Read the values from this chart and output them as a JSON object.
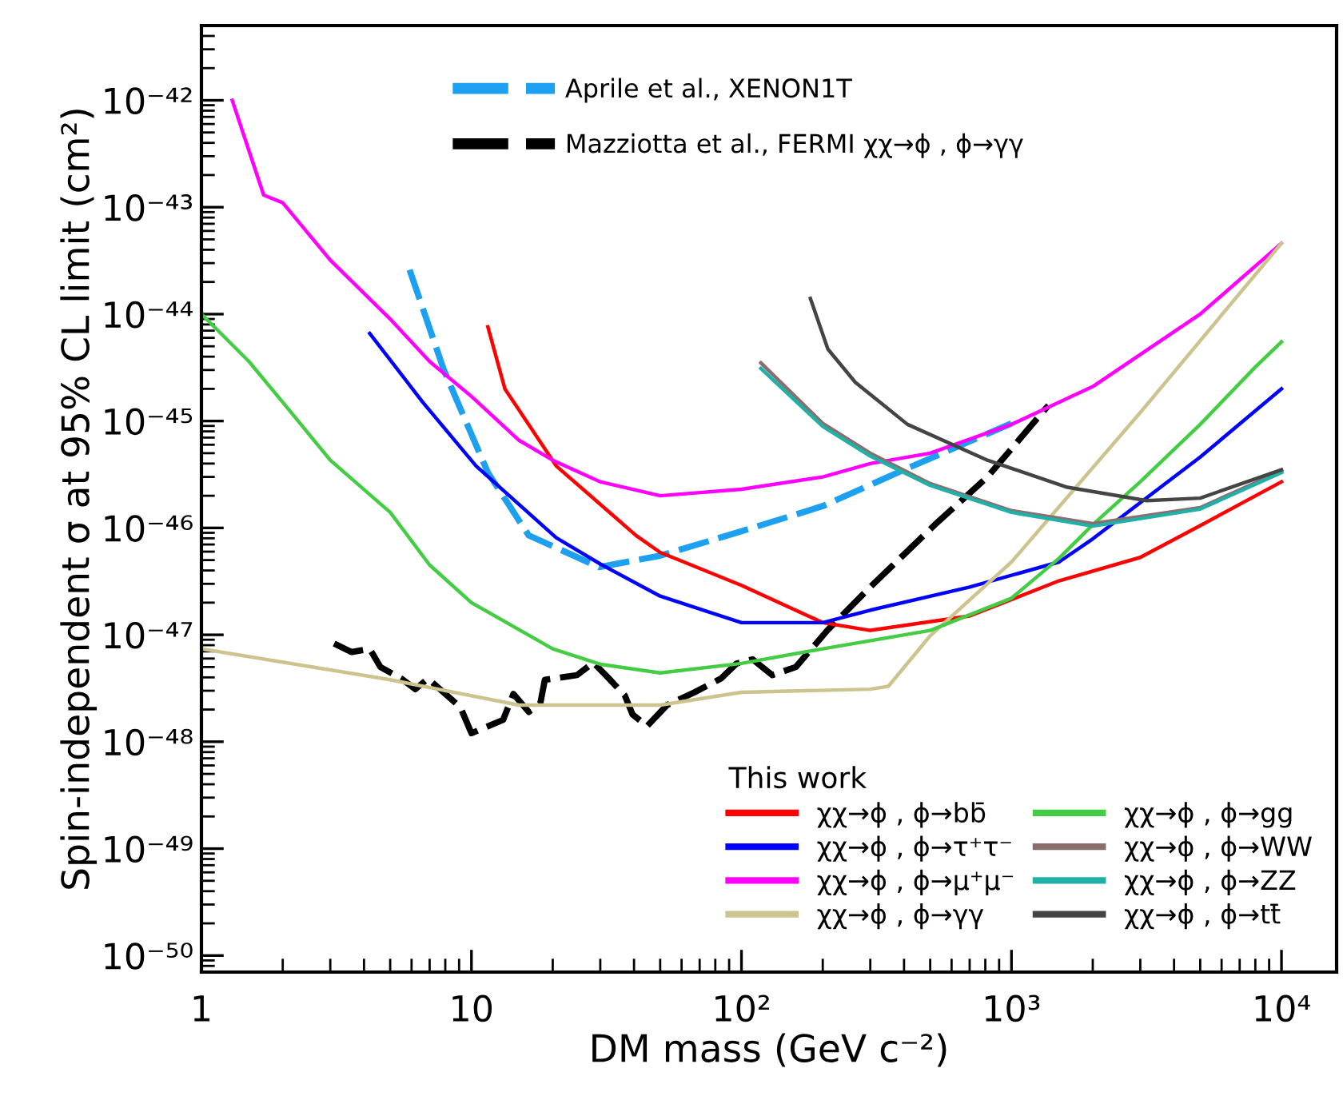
{
  "chart_data": {
    "type": "line",
    "log": "xy",
    "xlabel": "DM mass (GeV c⁻²)",
    "ylabel": "Spin-independent σ at 95% CL limit (cm²)",
    "xlim": [
      1,
      16000
    ],
    "ylim": [
      7e-51,
      5e-42
    ],
    "xticks": [
      1,
      10,
      {
        "value": 100,
        "label": "10²"
      },
      {
        "value": 1000,
        "label": "10³"
      },
      {
        "value": 10000,
        "label": "10⁴"
      }
    ],
    "yticks": [
      {
        "value": 1e-50,
        "label": "10⁻⁵⁰"
      },
      {
        "value": 1e-49,
        "label": "10⁻⁴⁹"
      },
      {
        "value": 1e-48,
        "label": "10⁻⁴⁸"
      },
      {
        "value": 1e-47,
        "label": "10⁻⁴⁷"
      },
      {
        "value": 1e-46,
        "label": "10⁻⁴⁶"
      },
      {
        "value": 1e-45,
        "label": "10⁻⁴⁵"
      },
      {
        "value": 1e-44,
        "label": "10⁻⁴⁴"
      },
      {
        "value": 1e-43,
        "label": "10⁻⁴³"
      },
      {
        "value": 1e-42,
        "label": "10⁻⁴²"
      }
    ],
    "legend": "bottom right",
    "legend_title": "This work",
    "series": [
      {
        "name": "Aprile et al., XENON1T",
        "color": "#1ea0f0",
        "line_style": "dashed",
        "x": [
          5.9,
          7.9,
          11.5,
          16.3,
          29.7,
          50,
          100,
          200,
          400,
          1000
        ],
        "values": [
          2.6e-44,
          3e-45,
          3.3e-46,
          8.5e-47,
          4.3e-47,
          5.5e-47,
          9.3e-47,
          1.6e-46,
          3.5e-46,
          9.5e-46
        ]
      },
      {
        "name": "Mazziotta et al., FERMI χχ→ϕ , ϕ→γγ",
        "color": "#000000",
        "line_style": "dashed",
        "x": [
          3.1,
          3.6,
          4.2,
          4.6,
          5.5,
          6.2,
          6.9,
          9.1,
          10,
          13.1,
          14.3,
          16.3,
          18,
          18.7,
          24.6,
          28.3,
          32.3,
          37,
          39.5,
          44.7,
          53,
          67,
          84,
          96,
          110,
          130,
          159,
          208,
          300,
          520,
          815,
          1370
        ],
        "values": [
          8.3e-48,
          6.9e-48,
          7.4e-48,
          5e-48,
          3.9e-48,
          3.1e-48,
          3.9e-48,
          2.1e-48,
          1.2e-48,
          1.6e-48,
          2.8e-48,
          1.9e-48,
          2.3e-48,
          3.8e-48,
          4.2e-48,
          5.5e-48,
          3.9e-48,
          2.7e-48,
          1.8e-48,
          1.4e-48,
          2.2e-48,
          2.9e-48,
          3.9e-48,
          5.4e-48,
          5.9e-48,
          4.2e-48,
          5e-48,
          1.1e-47,
          2.8e-47,
          1.07e-46,
          3e-46,
          1.4e-45
        ]
      },
      {
        "name": "χχ→ϕ , ϕ→bb̄",
        "color": "#ff0000",
        "x": [
          11.5,
          13.3,
          20.6,
          40.7,
          50,
          100,
          200,
          300,
          700,
          1500,
          3000,
          5000,
          10000
        ],
        "values": [
          7.6e-45,
          2e-45,
          3.8e-46,
          8.5e-47,
          5.9e-47,
          2.9e-47,
          1.3e-47,
          1.1e-47,
          1.5e-47,
          3.2e-47,
          5.3e-47,
          1.05e-46,
          2.7e-46
        ]
      },
      {
        "name": "χχ→ϕ , ϕ→τ⁺τ⁻",
        "color": "#0000ff",
        "x": [
          4.2,
          6.6,
          10.4,
          20.6,
          30,
          50,
          100,
          200,
          300,
          700,
          1500,
          2000,
          5000,
          10000
        ],
        "values": [
          6.6e-45,
          1.5e-45,
          3.8e-46,
          8.1e-47,
          4.6e-47,
          2.3e-47,
          1.3e-47,
          1.3e-47,
          1.7e-47,
          2.8e-47,
          4.8e-47,
          7.9e-47,
          4.6e-46,
          2e-45
        ]
      },
      {
        "name": "χχ→ϕ , ϕ→μ⁺μ⁻",
        "color": "#ff00ff",
        "x": [
          1.3,
          1.7,
          2,
          3,
          5,
          7,
          10,
          15,
          20,
          30,
          50,
          100,
          200,
          300,
          500,
          1000,
          2000,
          5000,
          10000
        ],
        "values": [
          1e-42,
          1.3e-43,
          1.1e-43,
          3.2e-44,
          9e-45,
          3.6e-45,
          1.7e-45,
          6.6e-46,
          4.3e-46,
          2.7e-46,
          2e-46,
          2.3e-46,
          3e-46,
          4e-46,
          5e-46,
          9.3e-46,
          2.1e-45,
          1e-44,
          4.6e-44
        ]
      },
      {
        "name": "χχ→ϕ , ϕ→γγ",
        "color": "#cdc38e",
        "x": [
          1,
          5,
          15,
          50,
          100,
          300,
          350,
          500,
          1000,
          3000,
          10000
        ],
        "values": [
          7.4e-48,
          3.8e-48,
          2.2e-48,
          2.2e-48,
          2.9e-48,
          3.1e-48,
          3.3e-48,
          9.8e-48,
          4.8e-47,
          1.2e-45,
          4.6e-44
        ]
      },
      {
        "name": "χχ→ϕ , ϕ→gg",
        "color": "#44cc44",
        "x": [
          1,
          1.5,
          2,
          3,
          5,
          7,
          10,
          20,
          30,
          50,
          100,
          200,
          500,
          1000,
          1500,
          2000,
          3000,
          5000,
          8000,
          10000
        ],
        "values": [
          1e-44,
          3.6e-45,
          1.5e-45,
          4.3e-46,
          1.4e-46,
          4.5e-47,
          2e-47,
          7.4e-48,
          5.3e-48,
          4.4e-48,
          5.4e-48,
          7.4e-48,
          1.1e-47,
          2.2e-47,
          5.2e-47,
          1.07e-46,
          2.7e-46,
          9.3e-46,
          3.2e-45,
          5.5e-45
        ]
      },
      {
        "name": "χχ→ϕ , ϕ→WW",
        "color": "#8a6e6e",
        "x": [
          118,
          200,
          300,
          500,
          1000,
          2000,
          5000,
          10000
        ],
        "values": [
          3.5e-45,
          9.5e-46,
          5e-46,
          2.6e-46,
          1.45e-46,
          1.1e-46,
          1.55e-46,
          3.4e-46
        ]
      },
      {
        "name": "χχ→ϕ , ϕ→ZZ",
        "color": "#20b0a8",
        "x": [
          118,
          200,
          300,
          500,
          1000,
          2000,
          5000,
          10000
        ],
        "values": [
          3.1e-45,
          8.9e-46,
          4.7e-46,
          2.5e-46,
          1.4e-46,
          1.04e-46,
          1.5e-46,
          3.3e-46
        ]
      },
      {
        "name": "χχ→ϕ , ϕ→tt̄",
        "color": "#444444",
        "x": [
          180,
          209,
          264,
          412,
          815,
          1610,
          3170,
          5000,
          10000
        ],
        "values": [
          1.4e-44,
          4.7e-45,
          2.3e-45,
          9.3e-46,
          4.3e-46,
          2.4e-46,
          1.8e-46,
          1.9e-46,
          3.5e-46
        ]
      }
    ]
  }
}
